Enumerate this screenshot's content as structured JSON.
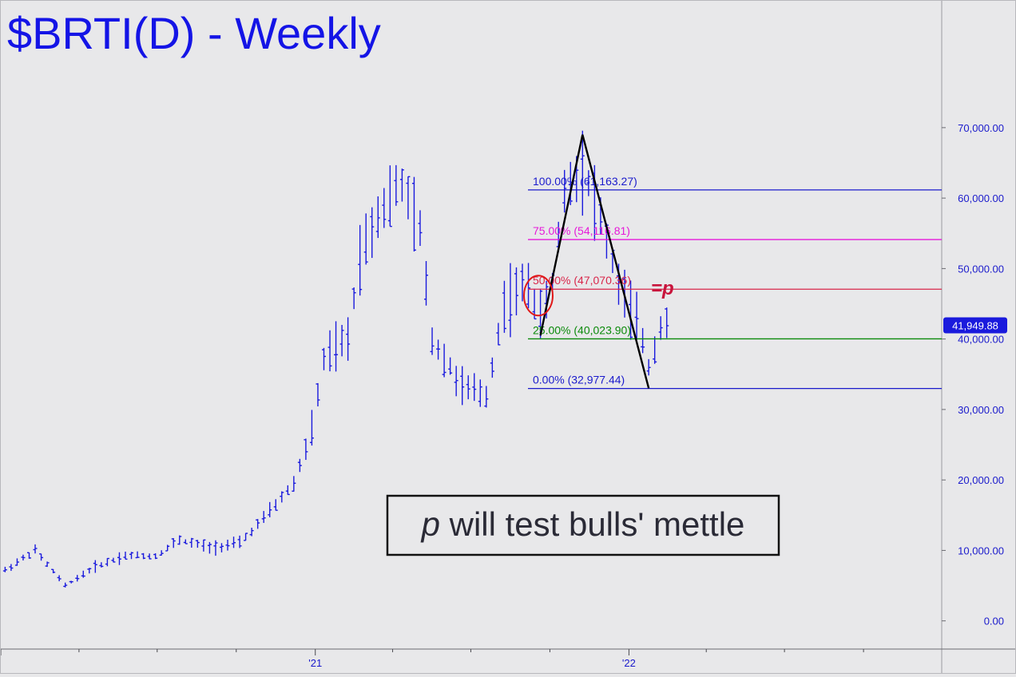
{
  "chart_data": {
    "type": "ohlc",
    "title": "$BRTI(D) - Weekly",
    "ylim": [
      -4000,
      88000
    ],
    "xlim": [
      "2020-01-01",
      "2022-12-31"
    ],
    "y_ticks": [
      {
        "value": 0,
        "label": "0.00"
      },
      {
        "value": 10000,
        "label": "10,000.00"
      },
      {
        "value": 20000,
        "label": "20,000.00"
      },
      {
        "value": 30000,
        "label": "30,000.00"
      },
      {
        "value": 40000,
        "label": "40,000.00"
      },
      {
        "value": 50000,
        "label": "50,000.00"
      },
      {
        "value": 60000,
        "label": "60,000.00"
      },
      {
        "value": 70000,
        "label": "70,000.00"
      }
    ],
    "x_ticks": [
      {
        "date": "2021-01-01",
        "label": "'21"
      },
      {
        "date": "2022-01-01",
        "label": "'22"
      }
    ],
    "last_price": {
      "value": 41949.88,
      "label": "41,949.88"
    },
    "fib_levels": [
      {
        "value": 61163.27,
        "label": "100.00% (61,163.27)",
        "color": "#1a1acc"
      },
      {
        "value": 54116.81,
        "label": "75.00% (54,116.81)",
        "color": "#e619d9"
      },
      {
        "value": 47070.36,
        "label": "50.00% (47,070.36)",
        "color": "#d9264a"
      },
      {
        "value": 40023.9,
        "label": "25.00% (40,023.90)",
        "color": "#0a8a0a"
      },
      {
        "value": 32977.44,
        "label": "0.00% (32,977.44)",
        "color": "#1a1acc"
      }
    ],
    "abc_pattern": [
      {
        "date": "2021-09-20",
        "value": 40500
      },
      {
        "date": "2021-11-08",
        "value": 69000
      },
      {
        "date": "2022-01-24",
        "value": 33000
      }
    ],
    "target_marker": {
      "label": "=p",
      "value": 47070.36
    },
    "annotation": {
      "italic": "p",
      "text": " will test bulls' mettle"
    },
    "colors": {
      "bars": "#1a1add",
      "pattern": "#000000",
      "circle": "#e01818",
      "label_bg": "#1a1add"
    }
  }
}
